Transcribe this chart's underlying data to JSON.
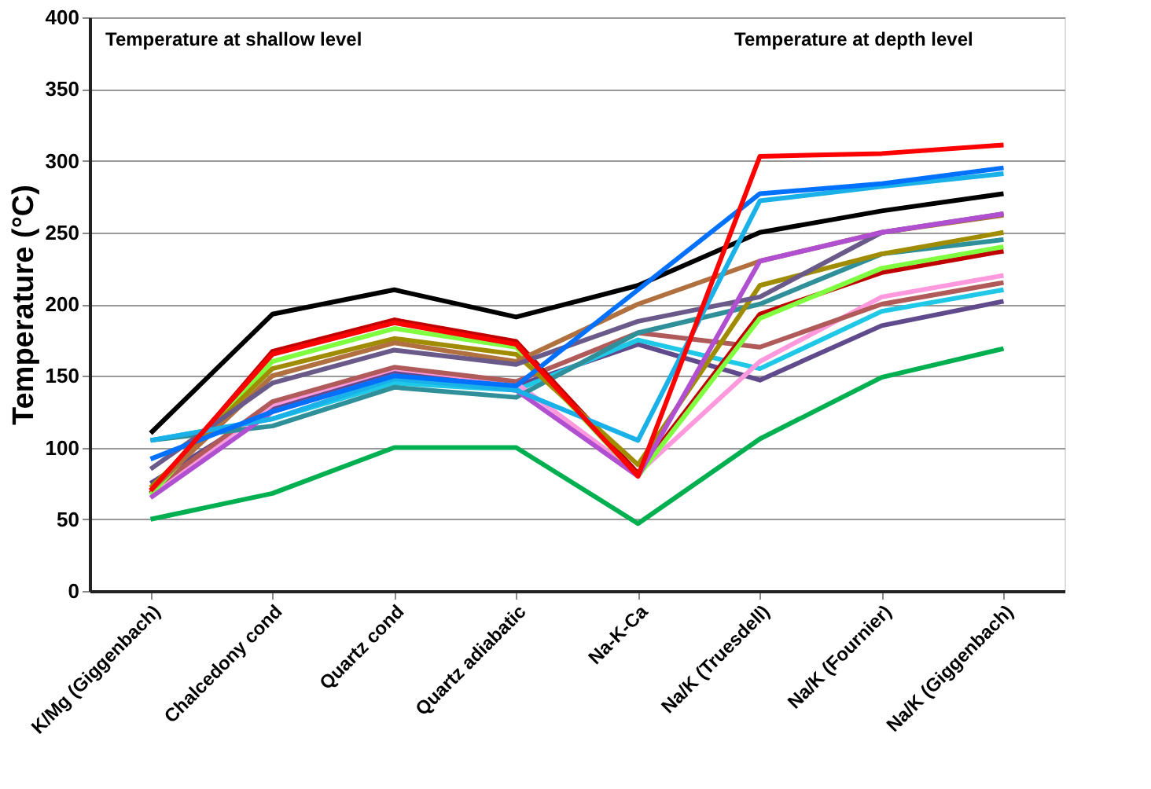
{
  "chart_data": {
    "type": "line",
    "ylabel": "Temperature (°C)",
    "categories": [
      "K/Mg (Giggenbach)",
      "Chalcedony cond",
      "Quartz cond",
      "Quartz adiabatic",
      "Na-K-Ca",
      "Na/K  (Truesdell)",
      "Na/K  (Fournier)",
      "Na/K (Giggenbach)"
    ],
    "series": [
      {
        "color": "#00b050",
        "values": [
          50,
          68,
          100,
          100,
          47,
          106,
          149,
          169
        ]
      },
      {
        "color": "#5f4b8b",
        "values": [
          75,
          128,
          152,
          143,
          172,
          147,
          185,
          202
        ]
      },
      {
        "color": "#1ec8e6",
        "values": [
          105,
          120,
          145,
          140,
          175,
          155,
          195,
          210
        ]
      },
      {
        "color": "#ff99dd",
        "values": [
          68,
          130,
          155,
          145,
          82,
          160,
          205,
          220
        ]
      },
      {
        "color": "#b05a5a",
        "values": [
          70,
          132,
          156,
          146,
          180,
          170,
          200,
          215
        ]
      },
      {
        "color": "#30909a",
        "values": [
          105,
          115,
          142,
          135,
          180,
          200,
          235,
          245
        ]
      },
      {
        "color": "#c00000",
        "values": [
          68,
          167,
          189,
          174,
          82,
          193,
          222,
          237
        ]
      },
      {
        "color": "#80ff40",
        "values": [
          67,
          160,
          183,
          170,
          80,
          190,
          225,
          240
        ]
      },
      {
        "color": "#a08c00",
        "values": [
          72,
          155,
          176,
          165,
          88,
          213,
          235,
          250
        ]
      },
      {
        "color": "#b07040",
        "values": [
          70,
          150,
          173,
          160,
          200,
          230,
          250,
          262
        ]
      },
      {
        "color": "#6a5a8a",
        "values": [
          85,
          145,
          168,
          158,
          188,
          205,
          250,
          263
        ]
      },
      {
        "color": "#b050d0",
        "values": [
          65,
          125,
          150,
          140,
          80,
          230,
          250,
          263
        ]
      },
      {
        "color": "#000000",
        "values": [
          110,
          193,
          210,
          191,
          213,
          250,
          265,
          277
        ]
      },
      {
        "color": "#1ab0e8",
        "values": [
          105,
          120,
          148,
          140,
          105,
          272,
          282,
          291
        ]
      },
      {
        "color": "#0070ff",
        "values": [
          92,
          125,
          150,
          143,
          210,
          277,
          284,
          295
        ]
      },
      {
        "color": "#ff0000",
        "values": [
          70,
          165,
          187,
          172,
          80,
          303,
          305,
          311
        ]
      }
    ],
    "ylim": [
      0,
      400
    ],
    "yticks": [
      0,
      50,
      100,
      150,
      200,
      250,
      300,
      350,
      400
    ],
    "grid": "y",
    "legend": false,
    "annotations": [
      "Temperature at shallow level",
      "Temperature at depth level"
    ]
  }
}
